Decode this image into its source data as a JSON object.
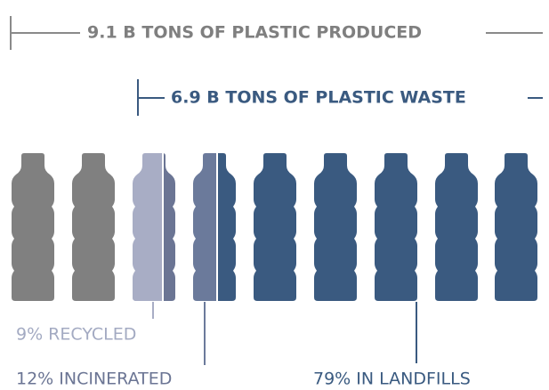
{
  "produced_label": "9.1 B TONS OF PLASTIC PRODUCED",
  "waste_label": "6.9 B TONS OF PLASTIC WASTE",
  "labels": [
    "9% RECYCLED",
    "12% INCINERATED",
    "79% IN LANDFILLS"
  ]
}
